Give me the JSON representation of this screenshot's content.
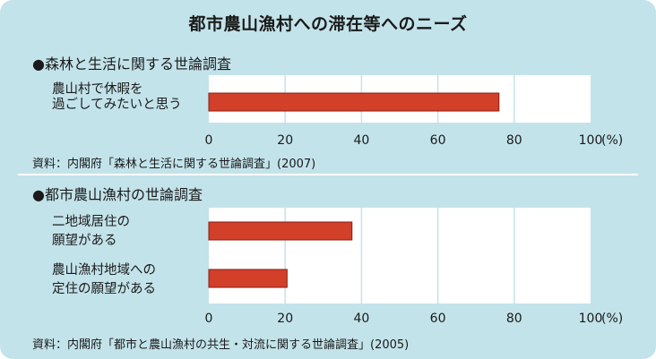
{
  "title": "都市農山漁村への滞在等へのニーズ",
  "colors": {
    "panel_bg": "#c3e3ea",
    "plot_bg": "#ffffff",
    "bar_fill": "#d2402a",
    "bar_stroke": "#8a1d12",
    "text": "#1a1a1a"
  },
  "chart_data": [
    {
      "type": "bar",
      "orientation": "horizontal",
      "title": "●森林と生活に関する世論調査",
      "categories": [
        [
          "農山村で休暇を",
          "過ごしてみたいと思う"
        ]
      ],
      "values": [
        76
      ],
      "xlim": [
        0,
        100
      ],
      "ticks": [
        "0",
        "20",
        "40",
        "60",
        "80",
        "100"
      ],
      "unit": "(%)",
      "source": "資料：内閣府「森林と生活に関する世論調査」(2007)",
      "grid": true
    },
    {
      "type": "bar",
      "orientation": "horizontal",
      "title": "●都市農山漁村の世論調査",
      "categories": [
        [
          "二地域居住の",
          "願望がある"
        ],
        [
          "農山漁村地域への",
          "定住の願望がある"
        ]
      ],
      "values": [
        37.5,
        20.5
      ],
      "xlim": [
        0,
        100
      ],
      "ticks": [
        "0",
        "20",
        "40",
        "60",
        "80",
        "100"
      ],
      "unit": "(%)",
      "source": "資料：内閣府「都市と農山漁村の共生・対流に関する世論調査」(2005)",
      "grid": true
    }
  ]
}
